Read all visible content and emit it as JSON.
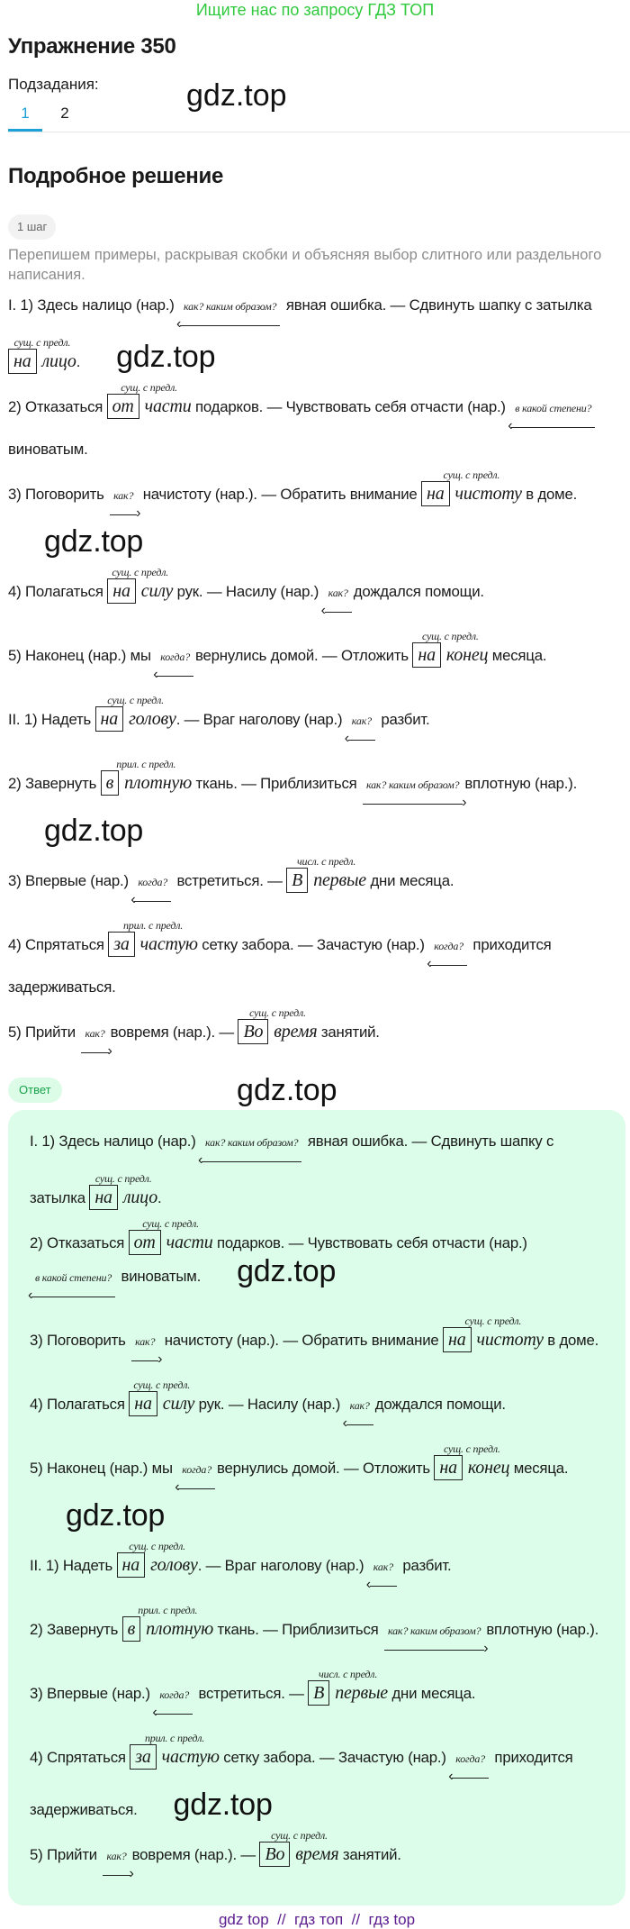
{
  "banner": "Ищите нас по запросу ГДЗ ТОП",
  "title": "Упражнение 350",
  "subtasks_label": "Подзадания:",
  "tabs": [
    {
      "label": "1",
      "active": true
    },
    {
      "label": "2",
      "active": false
    }
  ],
  "solution_title": "Подробное решение",
  "step_label": "1 шаг",
  "intro": "Перепишем примеры, раскрывая скобки и объясняя выбор слитного или раздельного написания.",
  "answer_label": "Ответ",
  "watermark": "gdz.top",
  "footer": "gdz top  //  гдз топ  //  гдз top",
  "colors": {
    "banner": "#2fc93c",
    "tab_active": "#1ba0d8",
    "answer_bg": "#dcfde9",
    "answer_label": "#17a34a",
    "footer": "#5a1b8e"
  },
  "items": [
    {
      "segments": [
        {
          "text": "I. 1) Здесь налицо (нар.) "
        },
        {
          "arrow": "left",
          "q": "как? каким образом?"
        },
        {
          "text": " явная ошибка. — Сдвинуть шапку с затылка "
        },
        {
          "q": "сущ. с предл.",
          "prep": "на",
          "word": "лицо"
        },
        {
          "text": "."
        }
      ]
    },
    {
      "segments": [
        {
          "text": "2) Отказаться "
        },
        {
          "q": "сущ. с предл.",
          "prep": "от",
          "word": "части"
        },
        {
          "text": " подарков. — Чувствовать себя отчасти (нар.) "
        },
        {
          "arrow": "left",
          "q": "в какой степени?"
        },
        {
          "text": " виноватым."
        }
      ]
    },
    {
      "segments": [
        {
          "text": "3) Поговорить "
        },
        {
          "arrow": "right",
          "q": "как?"
        },
        {
          "text": " начистоту (нар.). — Обратить внимание "
        },
        {
          "q": "сущ. с предл.",
          "prep": "на",
          "word": "чистоту"
        },
        {
          "text": " в доме."
        }
      ]
    },
    {
      "segments": [
        {
          "text": "4) Полагаться "
        },
        {
          "q": "сущ. с предл.",
          "prep": "на",
          "word": "силу"
        },
        {
          "text": " рук. — Насилу (нар.) "
        },
        {
          "arrow": "left",
          "q": "как?"
        },
        {
          "text": "дождался помощи."
        }
      ]
    },
    {
      "segments": [
        {
          "text": "5) Наконец (нар.) мы "
        },
        {
          "arrow": "left",
          "q": "когда?"
        },
        {
          "text": "вернулись домой. — Отложить "
        },
        {
          "q": "сущ. с предл.",
          "prep": "на",
          "word": "конец"
        },
        {
          "text": " месяца."
        }
      ]
    },
    {
      "segments": [
        {
          "text": "II. 1) Надеть "
        },
        {
          "q": "сущ. с предл.",
          "prep": "на",
          "word": "голову"
        },
        {
          "text": ". — Враг наголову (нар.) "
        },
        {
          "arrow": "left",
          "q": "как?"
        },
        {
          "text": " разбит."
        }
      ]
    },
    {
      "segments": [
        {
          "text": "2) Завернуть "
        },
        {
          "q": "прил. с предл.",
          "prep": "в",
          "word": "плотную"
        },
        {
          "text": " ткань. — Приблизиться "
        },
        {
          "arrow": "right",
          "q": "как? каким образом?"
        },
        {
          "text": "вплотную (нар.)."
        }
      ]
    },
    {
      "segments": [
        {
          "text": "3) Впервые (нар.) "
        },
        {
          "arrow": "left",
          "q": "когда?"
        },
        {
          "text": " встретиться. — "
        },
        {
          "q": "числ. с предл.",
          "prep": "В",
          "word": "первые"
        },
        {
          "text": " дни месяца."
        }
      ]
    },
    {
      "segments": [
        {
          "text": "4) Спрятаться "
        },
        {
          "q": "прил. с предл.",
          "prep": "за",
          "word": "частую"
        },
        {
          "text": " сетку забора. — Зачастую (нар.) "
        },
        {
          "arrow": "left",
          "q": "когда?"
        },
        {
          "text": " приходится задерживаться."
        }
      ]
    },
    {
      "segments": [
        {
          "text": "5) Прийти "
        },
        {
          "arrow": "right",
          "q": "как?"
        },
        {
          "text": "вовремя (нар.). — "
        },
        {
          "q": "сущ. с предл.",
          "prep": "Во",
          "word": "время"
        },
        {
          "text": " занятий."
        }
      ]
    }
  ]
}
